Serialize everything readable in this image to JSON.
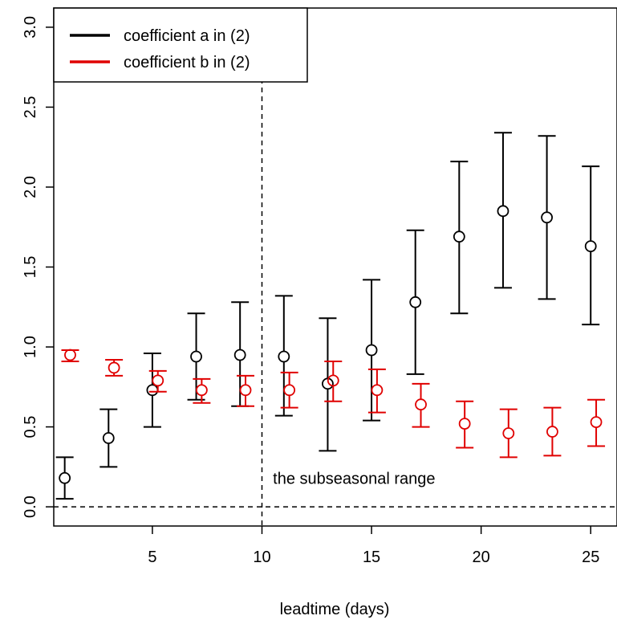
{
  "chart_data": {
    "type": "scatter",
    "title": "",
    "xlabel": "leadtime (days)",
    "ylabel": "",
    "xlim": [
      0.5,
      26.2
    ],
    "ylim": [
      -0.12,
      3.12
    ],
    "x_ticks": [
      5,
      10,
      15,
      20,
      25
    ],
    "y_ticks": [
      0.0,
      0.5,
      1.0,
      1.5,
      2.0,
      2.5,
      3.0
    ],
    "grid": false,
    "legend_position": "top-left",
    "series": [
      {
        "name": "coefficient a in (2)",
        "color": "#000000",
        "points": [
          {
            "x": 1,
            "y": 0.18,
            "lo": 0.05,
            "hi": 0.31
          },
          {
            "x": 3,
            "y": 0.43,
            "lo": 0.25,
            "hi": 0.61
          },
          {
            "x": 5,
            "y": 0.73,
            "lo": 0.5,
            "hi": 0.96
          },
          {
            "x": 7,
            "y": 0.94,
            "lo": 0.67,
            "hi": 1.21
          },
          {
            "x": 9,
            "y": 0.95,
            "lo": 0.63,
            "hi": 1.28
          },
          {
            "x": 11,
            "y": 0.94,
            "lo": 0.57,
            "hi": 1.32
          },
          {
            "x": 13,
            "y": 0.77,
            "lo": 0.35,
            "hi": 1.18
          },
          {
            "x": 15,
            "y": 0.98,
            "lo": 0.54,
            "hi": 1.42
          },
          {
            "x": 17,
            "y": 1.28,
            "lo": 0.83,
            "hi": 1.73
          },
          {
            "x": 19,
            "y": 1.69,
            "lo": 1.21,
            "hi": 2.16
          },
          {
            "x": 21,
            "y": 1.85,
            "lo": 1.37,
            "hi": 2.34
          },
          {
            "x": 23,
            "y": 1.81,
            "lo": 1.3,
            "hi": 2.32
          },
          {
            "x": 25,
            "y": 1.63,
            "lo": 1.14,
            "hi": 2.13
          }
        ]
      },
      {
        "name": "coefficient b in (2)",
        "color": "#e00000",
        "points": [
          {
            "x": 1.25,
            "y": 0.95,
            "lo": 0.91,
            "hi": 0.98
          },
          {
            "x": 3.25,
            "y": 0.87,
            "lo": 0.82,
            "hi": 0.92
          },
          {
            "x": 5.25,
            "y": 0.79,
            "lo": 0.72,
            "hi": 0.85
          },
          {
            "x": 7.25,
            "y": 0.73,
            "lo": 0.65,
            "hi": 0.8
          },
          {
            "x": 9.25,
            "y": 0.73,
            "lo": 0.63,
            "hi": 0.82
          },
          {
            "x": 11.25,
            "y": 0.73,
            "lo": 0.62,
            "hi": 0.84
          },
          {
            "x": 13.25,
            "y": 0.79,
            "lo": 0.66,
            "hi": 0.91
          },
          {
            "x": 15.25,
            "y": 0.73,
            "lo": 0.59,
            "hi": 0.86
          },
          {
            "x": 17.25,
            "y": 0.64,
            "lo": 0.5,
            "hi": 0.77
          },
          {
            "x": 19.25,
            "y": 0.52,
            "lo": 0.37,
            "hi": 0.66
          },
          {
            "x": 21.25,
            "y": 0.46,
            "lo": 0.31,
            "hi": 0.61
          },
          {
            "x": 23.25,
            "y": 0.47,
            "lo": 0.32,
            "hi": 0.62
          },
          {
            "x": 25.25,
            "y": 0.53,
            "lo": 0.38,
            "hi": 0.67
          }
        ]
      }
    ],
    "reference_lines": [
      {
        "orientation": "horizontal",
        "value": 0.0,
        "style": "dashed"
      },
      {
        "orientation": "vertical",
        "value": 10,
        "style": "dashed"
      }
    ],
    "annotations": [
      {
        "text": "the subseasonal range",
        "x": 10.5,
        "y": 0.18
      }
    ]
  }
}
